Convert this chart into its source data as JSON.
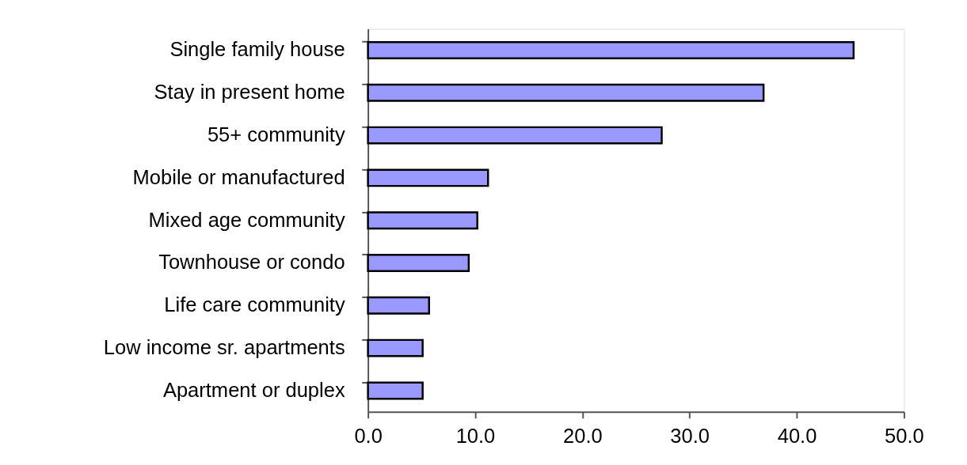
{
  "chart_data": {
    "type": "bar",
    "orientation": "horizontal",
    "categories": [
      "Single family house",
      "Stay in present home",
      "55+ community",
      "Mobile or manufactured",
      "Mixed age community",
      "Townhouse or condo",
      "Life care community",
      "Low income sr. apartments",
      "Apartment or duplex"
    ],
    "values": [
      45.3,
      36.9,
      27.4,
      11.2,
      10.2,
      9.4,
      5.7,
      5.1,
      5.1
    ],
    "color": "#9999ff",
    "xlim": [
      0,
      50
    ],
    "xticks": [
      {
        "value": 0,
        "label": "0.0"
      },
      {
        "value": 10,
        "label": "10.0"
      },
      {
        "value": 20,
        "label": "20.0"
      },
      {
        "value": 30,
        "label": "30.0"
      },
      {
        "value": 40,
        "label": "40.0"
      },
      {
        "value": 50,
        "label": "50.0"
      }
    ],
    "grid": false
  }
}
